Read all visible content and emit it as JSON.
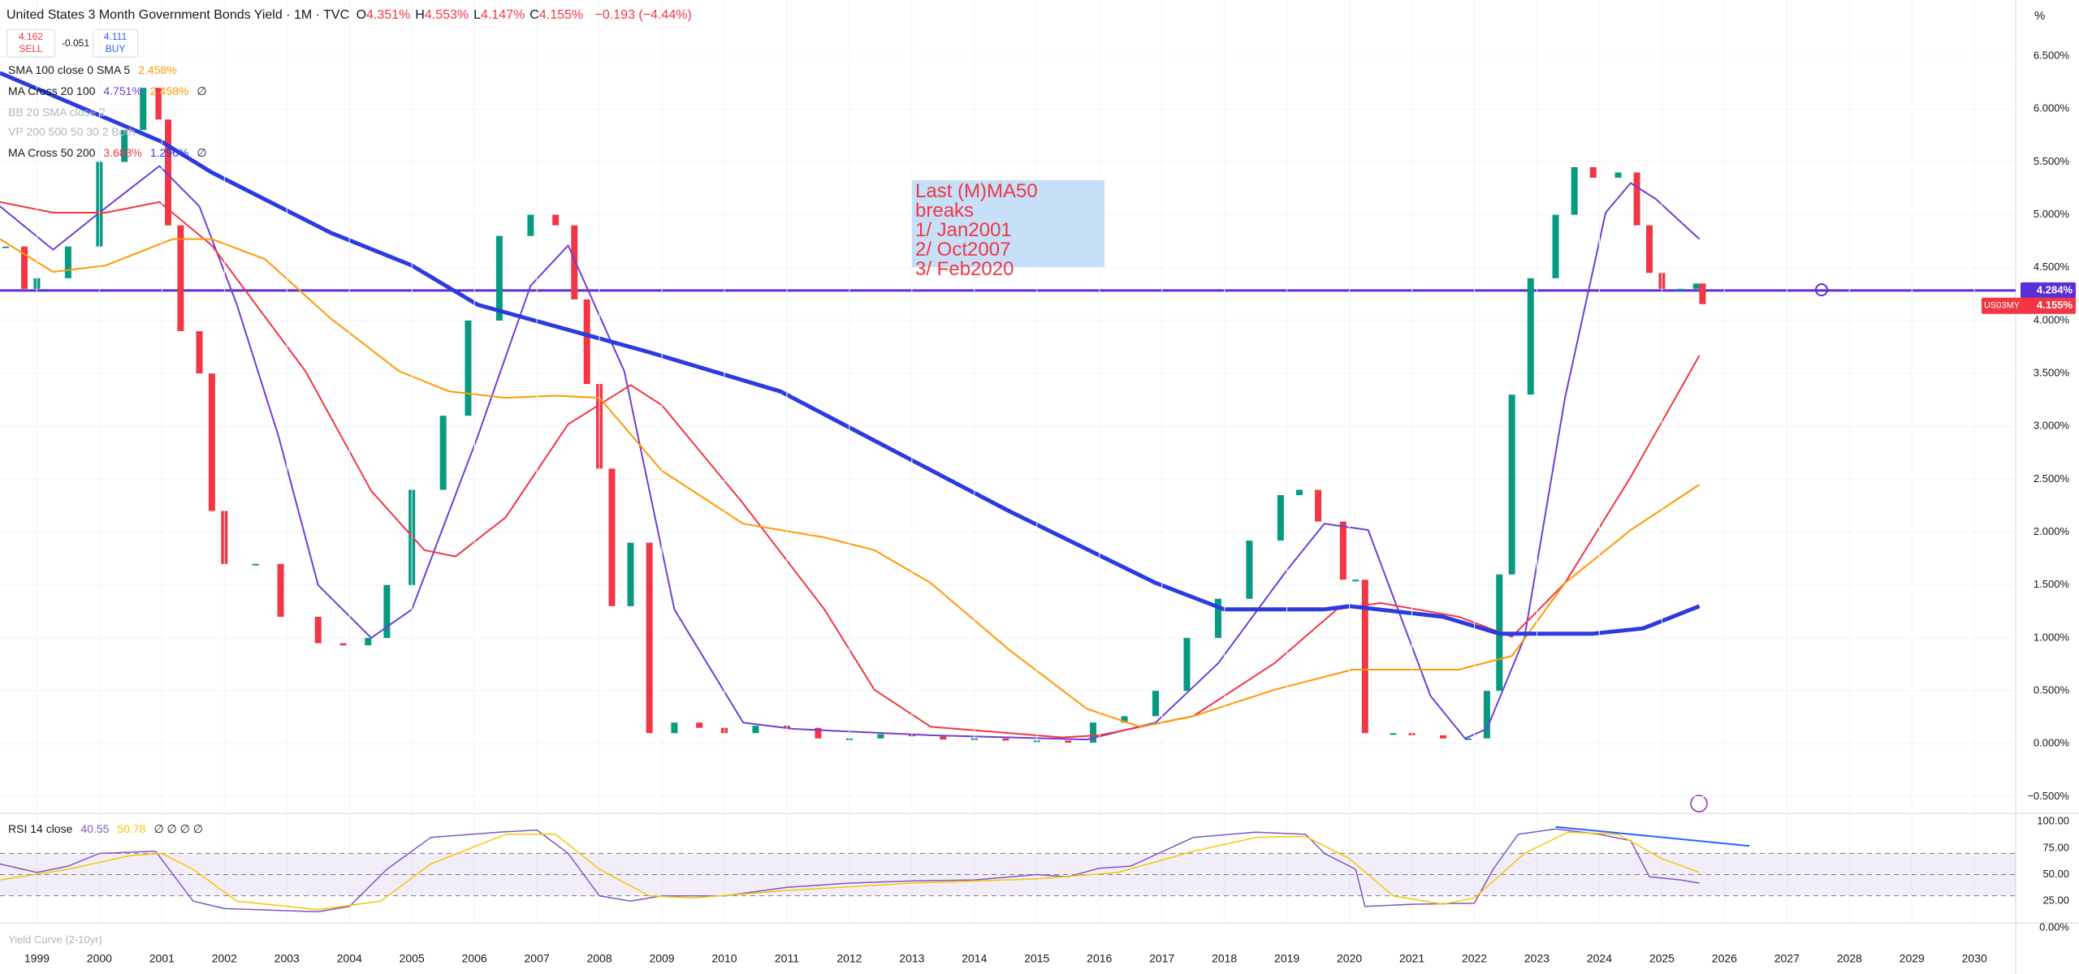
{
  "header": {
    "title": "United States 3 Month Government Bonds Yield · 1M · TVC",
    "ohlc": [
      {
        "label": "O",
        "value": "4.351%"
      },
      {
        "label": "H",
        "value": "4.553%"
      },
      {
        "label": "L",
        "value": "4.147%"
      },
      {
        "label": "C",
        "value": "4.155%"
      }
    ],
    "change": "−0.193 (−4.44%)",
    "sell_price": "4.162",
    "sell": "SELL",
    "spread": "-0.051",
    "buy_price": "4.111",
    "buy": "BUY"
  },
  "indicators": [
    {
      "label": "SMA 100 close 0 SMA 5",
      "values": [
        "2.458%"
      ],
      "colors": [
        "#ff9800"
      ]
    },
    {
      "label": "MA Cross 20 100",
      "values": [
        "4.751%",
        "2.458%",
        "∅"
      ],
      "colors": [
        "#6f3fd6",
        "#ff9800",
        "#131722"
      ]
    },
    {
      "label": "BB 20 SMA close 2",
      "values": [],
      "colors": []
    },
    {
      "label": "VP 200 500 50 30 2 Both",
      "values": [],
      "colors": []
    },
    {
      "label": "MA Cross 50 200",
      "values": [
        "3.683%",
        "1.296%",
        "∅"
      ],
      "colors": [
        "#f23645",
        "#2c3bdf",
        "#131722"
      ]
    }
  ],
  "footer_indicator": "Yield Curve (2-10yr)",
  "annotation": {
    "lines": [
      "Last (M)MA50 breaks",
      "1/ Jan2001",
      "2/ Oct2007",
      "3/ Feb2020"
    ]
  },
  "chart_data": [
    {
      "type": "candlestick",
      "unit": "%",
      "grid": true,
      "xlim": [
        1998.41,
        2030.66
      ],
      "xticks": [
        1999,
        2000,
        2001,
        2002,
        2003,
        2004,
        2005,
        2006,
        2007,
        2008,
        2009,
        2010,
        2011,
        2012,
        2013,
        2014,
        2015,
        2016,
        2017,
        2018,
        2019,
        2020,
        2021,
        2022,
        2023,
        2024,
        2025,
        2026,
        2027,
        2028,
        2029,
        2030
      ],
      "ylim": [
        -0.65,
        7.03
      ],
      "yticks": [
        {
          "value": -0.5,
          "label": "−0.500%"
        },
        {
          "value": 0,
          "label": "0.000%"
        },
        {
          "value": 0.5,
          "label": "0.500%"
        },
        {
          "value": 1,
          "label": "1.000%"
        },
        {
          "value": 1.5,
          "label": "1.500%"
        },
        {
          "value": 2,
          "label": "2.000%"
        },
        {
          "value": 2.5,
          "label": "2.500%"
        },
        {
          "value": 3,
          "label": "3.000%"
        },
        {
          "value": 3.5,
          "label": "3.500%"
        },
        {
          "value": 4,
          "label": "4.000%"
        },
        {
          "value": 4.5,
          "label": "4.500%"
        },
        {
          "value": 5,
          "label": "5.000%"
        },
        {
          "value": 5.5,
          "label": "5.500%"
        },
        {
          "value": 6,
          "label": "6.000%"
        },
        {
          "value": 6.5,
          "label": "6.500%"
        }
      ],
      "up_color": "#089981",
      "down_color": "#f23645",
      "series": [
        {
          "name": "US03MY",
          "x": [
            1998.5,
            1998.8,
            1999.0,
            1999.5,
            2000.0,
            2000.4,
            2000.7,
            2000.95,
            2001.1,
            2001.3,
            2001.6,
            2001.8,
            2002.0,
            2002.5,
            2002.9,
            2003.5,
            2003.9,
            2004.3,
            2004.6,
            2005.0,
            2005.5,
            2005.9,
            2006.4,
            2006.9,
            2007.3,
            2007.6,
            2007.8,
            2008.0,
            2008.2,
            2008.5,
            2008.8,
            2009.2,
            2009.6,
            2010.0,
            2010.5,
            2011.0,
            2011.5,
            2012.0,
            2012.5,
            2013.0,
            2013.5,
            2014.0,
            2014.5,
            2015.0,
            2015.5,
            2015.9,
            2016.4,
            2016.9,
            2017.4,
            2017.9,
            2018.4,
            2018.9,
            2019.2,
            2019.5,
            2019.9,
            2020.1,
            2020.25,
            2020.7,
            2021.0,
            2021.5,
            2021.9,
            2022.2,
            2022.4,
            2022.6,
            2022.9,
            2023.3,
            2023.6,
            2023.9,
            2024.3,
            2024.6,
            2024.8,
            2025.0,
            2025.3,
            2025.55,
            2025.65
          ],
          "values": [
            4.7,
            4.3,
            4.4,
            4.7,
            5.5,
            5.8,
            6.2,
            5.9,
            4.9,
            3.9,
            3.5,
            2.2,
            1.7,
            1.7,
            1.2,
            0.95,
            0.93,
            1.0,
            1.5,
            2.4,
            3.1,
            4.0,
            4.8,
            5.0,
            4.9,
            4.2,
            3.4,
            2.6,
            1.3,
            1.9,
            0.1,
            0.2,
            0.15,
            0.1,
            0.17,
            0.15,
            0.05,
            0.05,
            0.09,
            0.07,
            0.04,
            0.05,
            0.03,
            0.03,
            0.01,
            0.2,
            0.26,
            0.5,
            1.0,
            1.37,
            1.92,
            2.35,
            2.4,
            2.1,
            1.55,
            1.55,
            0.1,
            0.1,
            0.08,
            0.05,
            0.05,
            0.5,
            1.6,
            3.3,
            4.4,
            5.0,
            5.45,
            5.35,
            5.4,
            4.9,
            4.45,
            4.3,
            4.3,
            4.35,
            4.155
          ]
        },
        {
          "color": "#6f3fd6",
          "width": 2,
          "x": [
            1998.41,
            1999.26,
            2000.0,
            2000.96,
            2001.6,
            2002.2,
            2002.87,
            2003.5,
            2004.35,
            2005.0,
            2006.05,
            2006.9,
            2007.5,
            2008.4,
            2009.2,
            2010.3,
            2011.1,
            2013.3,
            2015.8,
            2016.9,
            2017.9,
            2019.0,
            2019.6,
            2020.3,
            2020.7,
            2021.3,
            2021.85,
            2022.2,
            2022.8,
            2023.45,
            2024.1,
            2024.5,
            2024.9,
            2025.6
          ],
          "values": [
            5.08,
            4.67,
            5.02,
            5.46,
            5.08,
            4.15,
            2.9,
            1.5,
            1.0,
            1.27,
            2.9,
            4.33,
            4.71,
            3.52,
            1.27,
            0.2,
            0.14,
            0.08,
            0.04,
            0.2,
            0.76,
            1.64,
            2.08,
            2.02,
            1.39,
            0.45,
            0.05,
            0.14,
            1.0,
            3.27,
            5.02,
            5.3,
            5.15,
            4.77
          ]
        },
        {
          "color": "#f23645",
          "width": 2,
          "x": [
            1998.41,
            1999.26,
            2000.1,
            2000.96,
            2001.8,
            2003.3,
            2004.35,
            2005.2,
            2005.7,
            2006.5,
            2007.5,
            2008.5,
            2009.0,
            2010.3,
            2011.6,
            2012.4,
            2013.3,
            2015.4,
            2016.0,
            2017.5,
            2018.8,
            2019.8,
            2020.5,
            2021.75,
            2022.6,
            2023.45,
            2024.5,
            2025.6
          ],
          "values": [
            5.12,
            5.02,
            5.02,
            5.12,
            4.71,
            3.52,
            2.39,
            1.83,
            1.77,
            2.14,
            3.02,
            3.39,
            3.2,
            2.27,
            1.27,
            0.51,
            0.16,
            0.06,
            0.08,
            0.26,
            0.76,
            1.27,
            1.33,
            1.2,
            1.01,
            1.52,
            2.52,
            3.67
          ]
        },
        {
          "color": "#ff9800",
          "width": 2,
          "x": [
            1998.41,
            1999.26,
            2000.1,
            2001.17,
            2001.8,
            2002.65,
            2003.7,
            2004.8,
            2005.6,
            2006.5,
            2007.3,
            2008.0,
            2009.0,
            2010.3,
            2011.6,
            2012.4,
            2013.3,
            2014.55,
            2015.8,
            2016.65,
            2017.5,
            2018.8,
            2020.05,
            2021.75,
            2022.6,
            2023.45,
            2024.5,
            2025.6
          ],
          "values": [
            4.77,
            4.46,
            4.52,
            4.77,
            4.77,
            4.58,
            4.02,
            3.52,
            3.33,
            3.27,
            3.29,
            3.27,
            2.58,
            2.08,
            1.95,
            1.83,
            1.52,
            0.89,
            0.33,
            0.16,
            0.26,
            0.51,
            0.7,
            0.7,
            0.83,
            1.52,
            2.02,
            2.45
          ]
        },
        {
          "color": "#2c3bdf",
          "width": 5,
          "x": [
            1998.41,
            2001.0,
            2001.8,
            2003.7,
            2005.0,
            2006.05,
            2008.8,
            2010.9,
            2014.55,
            2016.9,
            2018.0,
            2019.6,
            2020.0,
            2021.5,
            2022.4,
            2023.9,
            2024.7,
            2025.6
          ],
          "values": [
            6.34,
            5.69,
            5.4,
            4.83,
            4.52,
            4.15,
            3.7,
            3.33,
            2.2,
            1.52,
            1.27,
            1.27,
            1.3,
            1.2,
            1.04,
            1.04,
            1.09,
            1.3
          ]
        }
      ],
      "hline": {
        "value": 4.284,
        "label": "4.284%",
        "color": "#5b2fd6"
      },
      "last_price": {
        "value": 4.155,
        "label": "4.155%"
      }
    },
    {
      "type": "line",
      "title": "RSI 14 close",
      "legend_values": [
        "40.55",
        "50.78",
        "∅ ∅ ∅ ∅"
      ],
      "legend_colors": [
        "#7e57c2",
        "#f7c600",
        "#131722"
      ],
      "ylim": [
        3.75,
        106.25
      ],
      "yticks": [
        {
          "value": 0,
          "label": "0.00%"
        },
        {
          "value": 25,
          "label": "25.00"
        },
        {
          "value": 50,
          "label": "50.00"
        },
        {
          "value": 75,
          "label": "75.00"
        },
        {
          "value": 100,
          "label": "100.00"
        }
      ],
      "band": [
        30,
        70
      ],
      "levels": [
        70,
        50,
        30
      ],
      "series": [
        {
          "color": "#7e57c2",
          "width": 1.5,
          "x": [
            1998.41,
            1999.0,
            1999.5,
            2000.0,
            2000.9,
            2001.5,
            2002.0,
            2003.0,
            2003.5,
            2004.0,
            2004.6,
            2005.3,
            2006.4,
            2007.0,
            2007.5,
            2008.0,
            2008.5,
            2009.0,
            2010.0,
            2011.0,
            2012.0,
            2013.0,
            2014.0,
            2015.0,
            2015.5,
            2016.0,
            2016.5,
            2017.5,
            2018.5,
            2019.3,
            2019.6,
            2020.1,
            2020.25,
            2021.0,
            2022.0,
            2022.3,
            2022.7,
            2023.3,
            2024.0,
            2024.5,
            2024.8,
            2025.3,
            2025.6
          ],
          "values": [
            60,
            52,
            58,
            70,
            72,
            25,
            18,
            16,
            15,
            20,
            55,
            85,
            90,
            92,
            70,
            30,
            25,
            30,
            30,
            38,
            42,
            44,
            45,
            50,
            48,
            56,
            58,
            85,
            90,
            88,
            70,
            55,
            20,
            22,
            23,
            55,
            88,
            93,
            88,
            82,
            48,
            45,
            42
          ]
        },
        {
          "color": "#f7c600",
          "width": 1.5,
          "x": [
            1998.41,
            1999.5,
            2000.5,
            2001.0,
            2001.5,
            2002.2,
            2003.5,
            2004.5,
            2005.3,
            2006.5,
            2007.3,
            2008.0,
            2008.8,
            2009.5,
            2011.0,
            2013.0,
            2015.0,
            2016.3,
            2017.5,
            2018.5,
            2019.3,
            2020.0,
            2020.7,
            2021.5,
            2022.0,
            2022.8,
            2023.5,
            2024.3,
            2025.0,
            2025.6
          ],
          "values": [
            45,
            55,
            68,
            70,
            55,
            25,
            17,
            25,
            60,
            88,
            88,
            55,
            30,
            28,
            35,
            42,
            46,
            52,
            72,
            85,
            86,
            65,
            30,
            22,
            28,
            70,
            90,
            88,
            65,
            52
          ]
        },
        {
          "color": "#2962ff",
          "width": 2,
          "x": [
            2023.3,
            2026.4
          ],
          "values": [
            95,
            77
          ]
        }
      ]
    }
  ]
}
